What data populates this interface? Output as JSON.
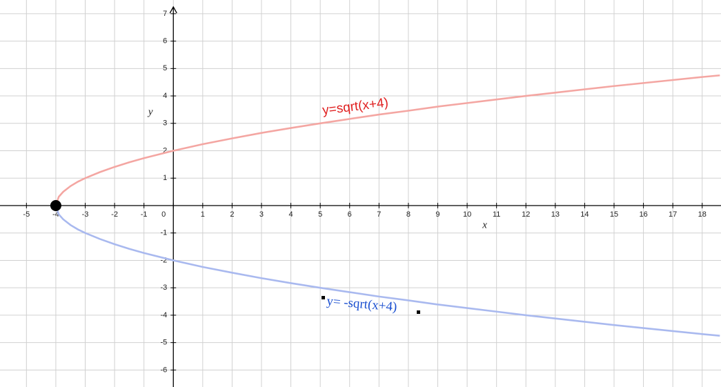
{
  "chart_data": {
    "type": "line",
    "x_label": "x",
    "y_label": "y",
    "x": [
      -4,
      -3.9,
      -3.75,
      -3.5,
      -3.25,
      -3,
      -2.5,
      -2,
      -1.5,
      -1,
      0,
      1,
      2,
      3,
      4,
      5,
      6,
      7,
      8,
      9,
      10,
      11,
      12,
      13,
      14,
      15,
      16,
      17,
      18,
      18.6
    ],
    "series": [
      {
        "name": "y=sqrt(x+4)",
        "color": "#f4a6a2",
        "label_color": "#e02020",
        "values": [
          0,
          0.32,
          0.5,
          0.71,
          0.87,
          1,
          1.22,
          1.41,
          1.58,
          1.73,
          2,
          2.24,
          2.45,
          2.65,
          2.83,
          3,
          3.16,
          3.32,
          3.46,
          3.61,
          3.74,
          3.87,
          4,
          4.12,
          4.24,
          4.36,
          4.47,
          4.58,
          4.69,
          4.75
        ]
      },
      {
        "name": "y= -sqrt(x+4)",
        "color": "#a9b9ef",
        "label_color": "#1a4fd0",
        "values": [
          0,
          -0.32,
          -0.5,
          -0.71,
          -0.87,
          -1,
          -1.22,
          -1.41,
          -1.58,
          -1.73,
          -2,
          -2.24,
          -2.45,
          -2.65,
          -2.83,
          -3,
          -3.16,
          -3.32,
          -3.46,
          -3.61,
          -3.74,
          -3.87,
          -4,
          -4.12,
          -4.24,
          -4.36,
          -4.47,
          -4.58,
          -4.69,
          -4.75
        ]
      }
    ],
    "point": {
      "x": -4,
      "y": 0,
      "color": "#000000"
    },
    "xlim": [
      -5.9,
      18.64
    ],
    "ylim": [
      -6.62,
      7.5
    ],
    "xticks": [
      -5,
      -4,
      -3,
      -2,
      -1,
      0,
      1,
      2,
      3,
      4,
      5,
      6,
      7,
      8,
      9,
      10,
      11,
      12,
      13,
      14,
      15,
      16,
      17,
      18
    ],
    "yticks": [
      -6,
      -5,
      -4,
      -3,
      -2,
      -1,
      1,
      2,
      3,
      4,
      5,
      6,
      7
    ],
    "grid": true
  }
}
